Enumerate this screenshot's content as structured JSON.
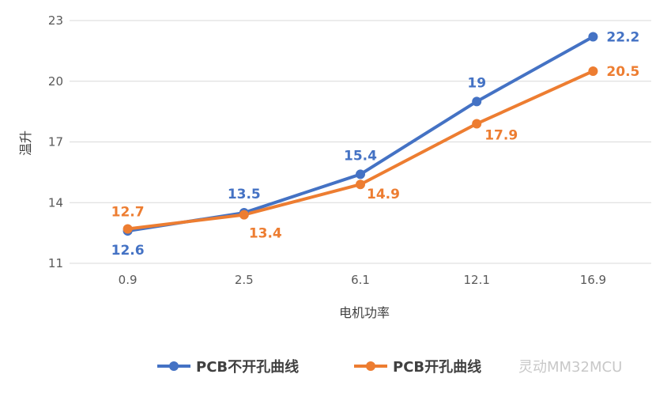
{
  "chart_data": {
    "type": "line",
    "categories": [
      "0.9",
      "2.5",
      "6.1",
      "12.1",
      "16.9"
    ],
    "series": [
      {
        "name": "PCB不开孔曲线",
        "color": "#4472C4",
        "values": [
          12.6,
          13.5,
          15.4,
          19,
          22.2
        ]
      },
      {
        "name": "PCB开孔曲线",
        "color": "#ED7D31",
        "values": [
          12.7,
          13.4,
          14.9,
          17.9,
          20.5
        ]
      }
    ],
    "value_labels": [
      [
        "12.6",
        "13.5",
        "15.4",
        "19",
        "22.2"
      ],
      [
        "12.7",
        "13.4",
        "14.9",
        "17.9",
        "20.5"
      ]
    ],
    "title": "",
    "xlabel": "电机功率",
    "ylabel": "温升",
    "ylim": [
      11,
      23
    ],
    "yticks": [
      11,
      14,
      17,
      20,
      23
    ],
    "grid": true,
    "legend": "bottom"
  },
  "watermark": "灵动MM32MCU"
}
